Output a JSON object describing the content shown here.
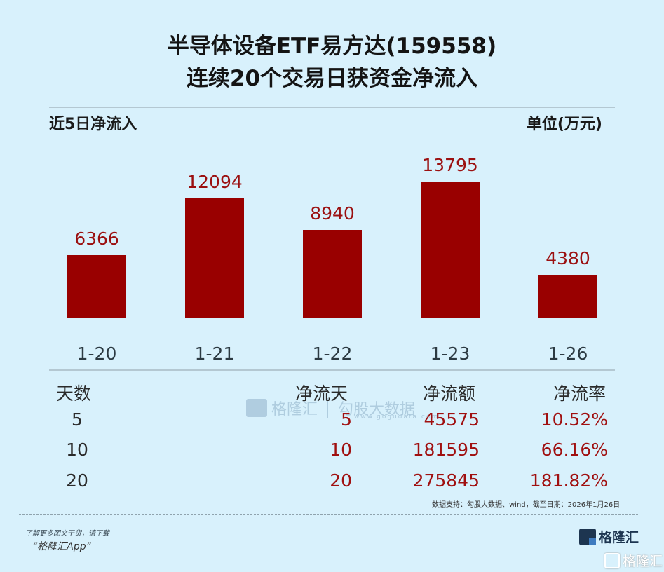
{
  "header": {
    "title_line1": "半导体设备ETF易方达(159558)",
    "title_line2": "连续20个交易日获资金净流入"
  },
  "chart_header": {
    "left_label": "近5日净流入",
    "unit_label": "单位(万元)"
  },
  "chart_data": {
    "type": "bar",
    "title": "近5日净流入",
    "ylabel": "单位(万元)",
    "categories": [
      "1-20",
      "1-21",
      "1-22",
      "1-23",
      "1-26"
    ],
    "values": [
      6366,
      12094,
      8940,
      13795,
      4380
    ],
    "value_labels": [
      "6366",
      "12094",
      "8940",
      "13795",
      "4380"
    ],
    "bar_color": "#990000",
    "grid": false,
    "ylim": [
      0,
      13795
    ]
  },
  "table": {
    "headers": [
      "天数",
      "净流天",
      "净流额",
      "净流率"
    ],
    "rows": [
      {
        "days": "5",
        "flow_days": "5",
        "amount": "45575",
        "rate": "10.52%"
      },
      {
        "days": "10",
        "flow_days": "10",
        "amount": "181595",
        "rate": "66.16%"
      },
      {
        "days": "20",
        "flow_days": "20",
        "amount": "275845",
        "rate": "181.82%"
      }
    ]
  },
  "watermark": {
    "brand": "格隆汇",
    "brand2": "勾股大数据",
    "url": "www.gogudata.com"
  },
  "source_note": "数据支持：勾股大数据、wind，截至日期：2026年1月26日",
  "footer": {
    "promo_line1": "了解更多图文干货，请下载",
    "promo_line2": "“格隆汇App”",
    "logo_text": "格隆汇",
    "logo_text2": "格隆汇"
  },
  "colors": {
    "background": "#d8f1fc",
    "bar": "#990000",
    "value_text": "#9b1010"
  }
}
